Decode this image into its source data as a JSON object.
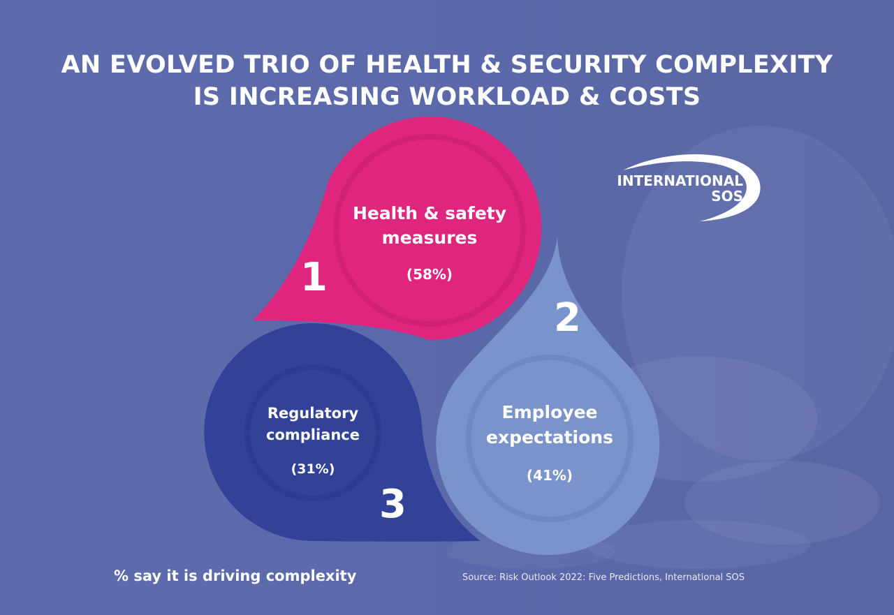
{
  "title": {
    "line1": "AN EVOLVED TRIO OF HEALTH & SECURITY COMPLEXITY",
    "line2": "IS INCREASING WORKLOAD & COSTS"
  },
  "logo": {
    "line1": "INTERNATIONAL",
    "line2": "SOS"
  },
  "drivers": [
    {
      "number": "1",
      "label_line1": "Health & safety",
      "label_line2": "measures",
      "percent_text": "(58%)",
      "color": "#e0257f",
      "ring_color": "#c51d6f"
    },
    {
      "number": "2",
      "label_line1": "Employee",
      "label_line2": "expectations",
      "percent_text": "(41%)",
      "color": "#7a93cb",
      "ring_color": "#6780bb"
    },
    {
      "number": "3",
      "label_line1": "Regulatory",
      "label_line2": "compliance",
      "percent_text": "(31%)",
      "color": "#324299",
      "ring_color": "#2b3a8a"
    }
  ],
  "footnote": "% say it is driving complexity",
  "source": "Source: Risk Outlook 2022: Five Predictions, International SOS",
  "colors": {
    "background": "#5b69aa",
    "text": "#ffffff"
  }
}
